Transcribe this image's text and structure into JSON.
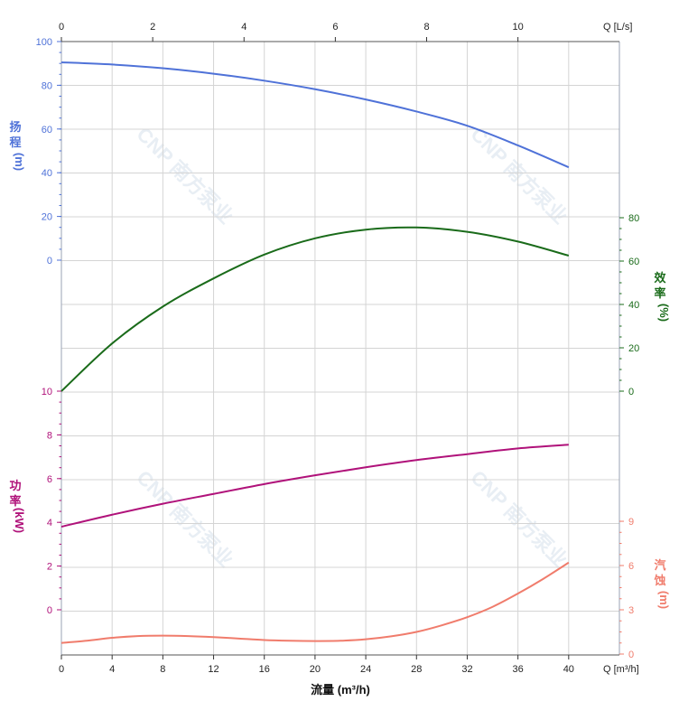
{
  "chart_data": {
    "type": "line",
    "xlabel": "流量 (m³/h)",
    "x_unit_bottom": "Q [m³/h]",
    "x_unit_top": "Q [L/s]",
    "x_ticks_bottom": [
      0,
      4,
      8,
      12,
      16,
      20,
      24,
      28,
      32,
      36,
      40
    ],
    "x_ticks_top": [
      0,
      2,
      4,
      6,
      8,
      10
    ],
    "xlim": [
      0,
      44
    ],
    "watermark": "CNP 南方泵业",
    "axes": {
      "head": {
        "label": [
          "扬",
          "程",
          "(m)"
        ],
        "color": "#4f72d8",
        "ticks": [
          0,
          20,
          40,
          60,
          80,
          100
        ],
        "side": "left"
      },
      "efficiency": {
        "label": [
          "效",
          "率",
          "(%)"
        ],
        "color": "#1a6b1a",
        "ticks": [
          0,
          20,
          40,
          60,
          80
        ],
        "side": "right"
      },
      "power": {
        "label": [
          "功",
          "率",
          "(kW)"
        ],
        "color": "#b0127a",
        "ticks": [
          0,
          2,
          4,
          6,
          8,
          10
        ],
        "side": "left"
      },
      "npsh": {
        "label": [
          "汽",
          "蚀",
          "(m)"
        ],
        "color": "#f07c6c",
        "ticks": [
          0,
          3,
          6,
          9
        ],
        "side": "right"
      }
    },
    "series": [
      {
        "name": "扬程",
        "axis": "head",
        "color": "#4f72d8",
        "x": [
          0,
          4,
          8,
          12,
          16,
          20,
          24,
          28,
          32,
          36,
          40
        ],
        "y": [
          90.5,
          89.5,
          87.8,
          85.3,
          82.1,
          78.2,
          73.5,
          68.0,
          61.5,
          52.5,
          42.5
        ]
      },
      {
        "name": "效率",
        "axis": "efficiency",
        "color": "#1a6b1a",
        "x": [
          0,
          4,
          8,
          12,
          16,
          20,
          24,
          28,
          32,
          36,
          40
        ],
        "y": [
          0,
          22,
          39,
          52,
          63,
          70.5,
          74.5,
          75.5,
          73.5,
          69,
          62.5
        ]
      },
      {
        "name": "功率",
        "axis": "power",
        "color": "#b0127a",
        "x": [
          0,
          4,
          8,
          12,
          16,
          20,
          24,
          28,
          32,
          36,
          40
        ],
        "y": [
          3.8,
          4.35,
          4.85,
          5.3,
          5.75,
          6.15,
          6.52,
          6.85,
          7.12,
          7.38,
          7.55
        ]
      },
      {
        "name": "汽蚀",
        "axis": "npsh",
        "color": "#f07c6c",
        "x": [
          0,
          2,
          4,
          6,
          8,
          10,
          12,
          14,
          16,
          18,
          20,
          22,
          24,
          26,
          28,
          30,
          32,
          34,
          36,
          38,
          40
        ],
        "y": [
          0.75,
          0.9,
          1.1,
          1.22,
          1.25,
          1.22,
          1.15,
          1.05,
          0.95,
          0.9,
          0.88,
          0.9,
          1.0,
          1.2,
          1.5,
          1.95,
          2.5,
          3.2,
          4.1,
          5.1,
          6.2
        ]
      }
    ]
  }
}
